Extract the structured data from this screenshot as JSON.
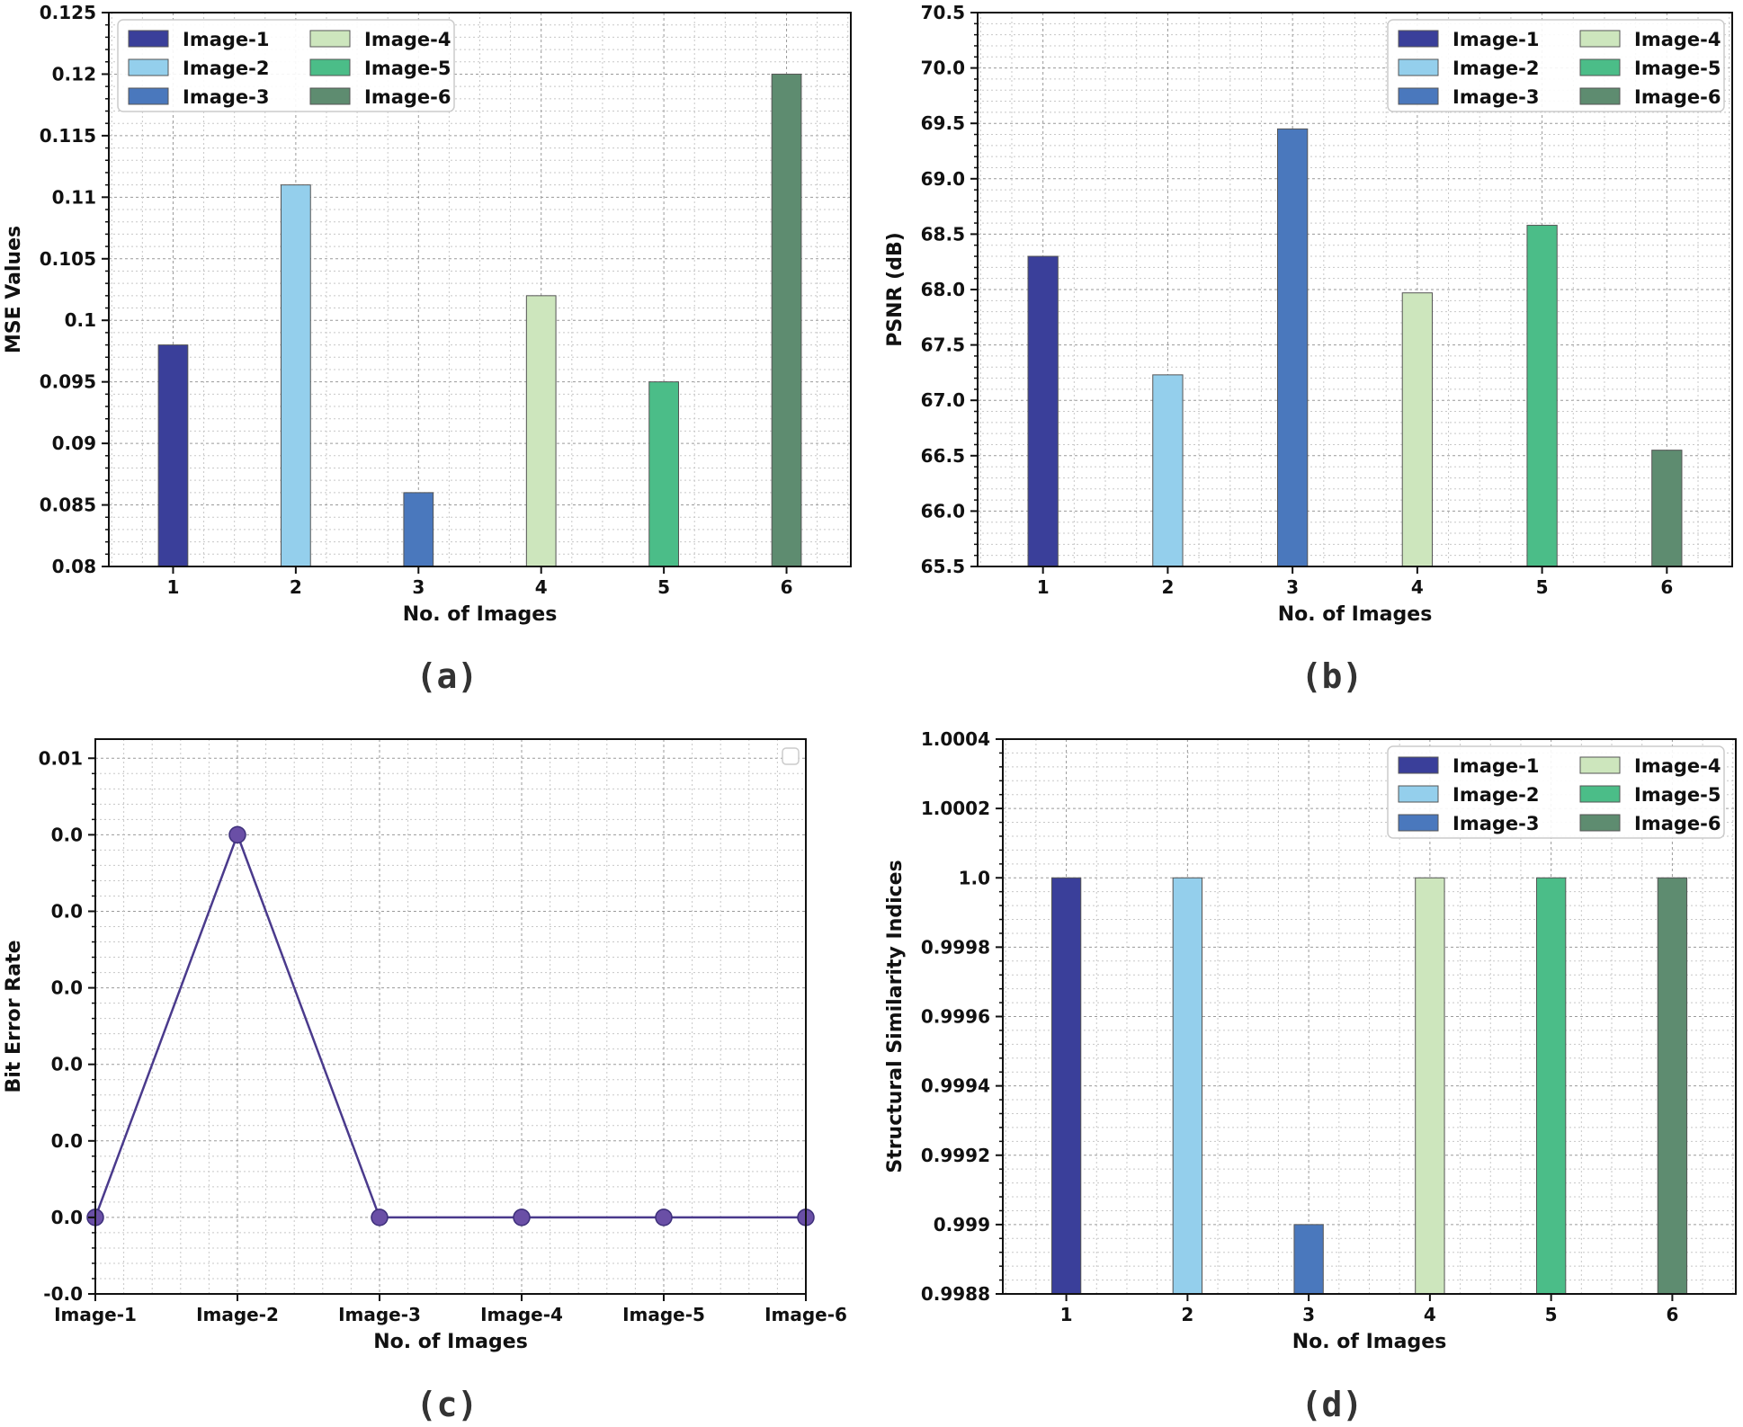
{
  "chart_data": [
    {
      "id": "a",
      "type": "bar",
      "panel_label": "(a)",
      "categories": [
        "1",
        "2",
        "3",
        "4",
        "5",
        "6"
      ],
      "series": [
        {
          "name": "Image-1",
          "values": [
            0.098,
            null,
            null,
            null,
            null,
            null
          ],
          "color": "#3a3f9a"
        },
        {
          "name": "Image-2",
          "values": [
            null,
            0.111,
            null,
            null,
            null,
            null
          ],
          "color": "#94cfec"
        },
        {
          "name": "Image-3",
          "values": [
            null,
            null,
            0.086,
            null,
            null,
            null
          ],
          "color": "#4a78bd"
        },
        {
          "name": "Image-4",
          "values": [
            null,
            null,
            null,
            0.102,
            null,
            null
          ],
          "color": "#cde6bd"
        },
        {
          "name": "Image-5",
          "values": [
            null,
            null,
            null,
            null,
            0.095,
            null
          ],
          "color": "#4bbd88"
        },
        {
          "name": "Image-6",
          "values": [
            null,
            null,
            null,
            null,
            null,
            0.12
          ],
          "color": "#5e8c70"
        }
      ],
      "xlabel": "No. of Images",
      "ylabel": "MSE Values",
      "ylim": [
        0.08,
        0.125
      ],
      "yticks": [
        "0.08",
        "0.085",
        "0.09",
        "0.095",
        "0.1",
        "0.105",
        "0.11",
        "0.115",
        "0.12",
        "0.125"
      ],
      "grid": true,
      "legend": "top-left"
    },
    {
      "id": "b",
      "type": "bar",
      "panel_label": "(b)",
      "categories": [
        "1",
        "2",
        "3",
        "4",
        "5",
        "6"
      ],
      "series": [
        {
          "name": "Image-1",
          "values": [
            68.3,
            null,
            null,
            null,
            null,
            null
          ],
          "color": "#3a3f9a"
        },
        {
          "name": "Image-2",
          "values": [
            null,
            67.23,
            null,
            null,
            null,
            null
          ],
          "color": "#94cfec"
        },
        {
          "name": "Image-3",
          "values": [
            null,
            null,
            69.45,
            null,
            null,
            null
          ],
          "color": "#4a78bd"
        },
        {
          "name": "Image-4",
          "values": [
            null,
            null,
            null,
            67.97,
            null,
            null
          ],
          "color": "#cde6bd"
        },
        {
          "name": "Image-5",
          "values": [
            null,
            null,
            null,
            null,
            68.58,
            null
          ],
          "color": "#4bbd88"
        },
        {
          "name": "Image-6",
          "values": [
            null,
            null,
            null,
            null,
            null,
            66.55
          ],
          "color": "#5e8c70"
        }
      ],
      "xlabel": "No. of Images",
      "ylabel": "PSNR (dB)",
      "ylim": [
        65.5,
        70.5
      ],
      "yticks": [
        "65.5",
        "66.0",
        "66.5",
        "67.0",
        "67.5",
        "68.0",
        "68.5",
        "69.0",
        "69.5",
        "70.0",
        "70.5"
      ],
      "grid": true,
      "legend": "top-right"
    },
    {
      "id": "c",
      "type": "line",
      "panel_label": "(c)",
      "x": [
        "Image-1",
        "Image-2",
        "Image-3",
        "Image-4",
        "Image-5",
        "Image-6"
      ],
      "values": [
        0.0,
        0.008,
        0.0,
        0.0,
        0.0,
        0.0
      ],
      "color": "#4a3a8c",
      "marker_color": "#6a4fa6",
      "xlabel": "No. of Images",
      "ylabel": "Bit Error Rate",
      "ylim": [
        -0.0016,
        0.01
      ],
      "yticks": [
        "-0.0",
        "0.0",
        "0.0",
        "0.0",
        "0.0",
        "0.0",
        "0.0",
        "0.01"
      ],
      "ytick_values": [
        -0.0016,
        0.0,
        0.0016,
        0.0032,
        0.0048,
        0.0064,
        0.008,
        0.0096
      ],
      "grid": true,
      "legend": "top-right-empty"
    },
    {
      "id": "d",
      "type": "bar",
      "panel_label": "(d)",
      "categories": [
        "1",
        "2",
        "3",
        "4",
        "5",
        "6"
      ],
      "series": [
        {
          "name": "Image-1",
          "values": [
            1.0,
            null,
            null,
            null,
            null,
            null
          ],
          "color": "#3a3f9a"
        },
        {
          "name": "Image-2",
          "values": [
            null,
            1.0,
            null,
            null,
            null,
            null
          ],
          "color": "#94cfec"
        },
        {
          "name": "Image-3",
          "values": [
            null,
            null,
            0.999,
            null,
            null,
            null
          ],
          "color": "#4a78bd"
        },
        {
          "name": "Image-4",
          "values": [
            null,
            null,
            null,
            1.0,
            null,
            null
          ],
          "color": "#cde6bd"
        },
        {
          "name": "Image-5",
          "values": [
            null,
            null,
            null,
            null,
            1.0,
            null
          ],
          "color": "#4bbd88"
        },
        {
          "name": "Image-6",
          "values": [
            null,
            null,
            null,
            null,
            null,
            1.0
          ],
          "color": "#5e8c70"
        }
      ],
      "xlabel": "No. of Images",
      "ylabel": "Structural Similarity Indices",
      "ylim": [
        0.9988,
        1.0004
      ],
      "yticks": [
        "0.9988",
        "0.999",
        "0.9992",
        "0.9994",
        "0.9996",
        "0.9998",
        "1.0",
        "1.0002",
        "1.0004"
      ],
      "grid": true,
      "legend": "top-right"
    }
  ]
}
